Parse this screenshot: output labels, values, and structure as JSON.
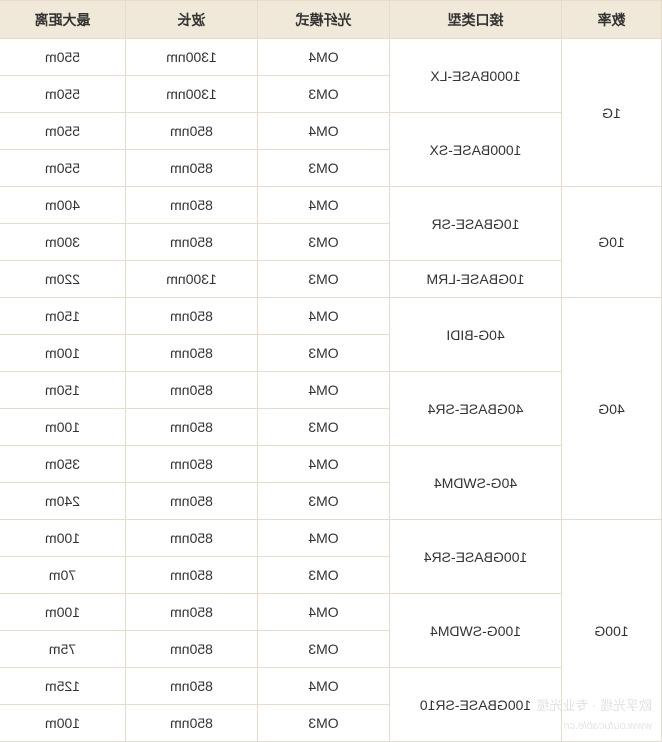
{
  "table": {
    "columns": [
      "数率",
      "接口类型",
      "光纤模式",
      "波长",
      "最大距离"
    ],
    "header_bg": "#f0e8d8",
    "cell_bg": "#ffffff",
    "border_color": "#e8dcc8",
    "text_color": "#333333",
    "font_size": 14,
    "groups": [
      {
        "rate": "1G",
        "interfaces": [
          {
            "name": "1000BASE-LX",
            "rows": [
              {
                "mode": "OM4",
                "wavelength": "1300nm",
                "distance": "550m"
              },
              {
                "mode": "OM3",
                "wavelength": "1300nm",
                "distance": "550m"
              }
            ]
          },
          {
            "name": "1000BASE-SX",
            "rows": [
              {
                "mode": "OM4",
                "wavelength": "850nm",
                "distance": "550m"
              },
              {
                "mode": "OM3",
                "wavelength": "850nm",
                "distance": "550m"
              }
            ]
          }
        ]
      },
      {
        "rate": "10G",
        "interfaces": [
          {
            "name": "10GBASE-SR",
            "rows": [
              {
                "mode": "OM4",
                "wavelength": "850nm",
                "distance": "400m"
              },
              {
                "mode": "OM3",
                "wavelength": "850nm",
                "distance": "300m"
              }
            ]
          },
          {
            "name": "10GBASE-LRM",
            "rows": [
              {
                "mode": "OM3",
                "wavelength": "1300nm",
                "distance": "220m"
              }
            ]
          }
        ]
      },
      {
        "rate": "40G",
        "interfaces": [
          {
            "name": "40G-BIDI",
            "rows": [
              {
                "mode": "OM4",
                "wavelength": "850nm",
                "distance": "150m"
              },
              {
                "mode": "OM3",
                "wavelength": "850nm",
                "distance": "100m"
              }
            ]
          },
          {
            "name": "40GBASE-SR4",
            "rows": [
              {
                "mode": "OM4",
                "wavelength": "850nm",
                "distance": "150m"
              },
              {
                "mode": "OM3",
                "wavelength": "850nm",
                "distance": "100m"
              }
            ]
          },
          {
            "name": "40G-SWDM4",
            "rows": [
              {
                "mode": "OM4",
                "wavelength": "850nm",
                "distance": "350m"
              },
              {
                "mode": "OM3",
                "wavelength": "850nm",
                "distance": "240m"
              }
            ]
          }
        ]
      },
      {
        "rate": "100G",
        "interfaces": [
          {
            "name": "100GBASE-SR4",
            "rows": [
              {
                "mode": "OM4",
                "wavelength": "850nm",
                "distance": "100m"
              },
              {
                "mode": "OM3",
                "wavelength": "850nm",
                "distance": "70m"
              }
            ]
          },
          {
            "name": "100G-SWDM4",
            "rows": [
              {
                "mode": "OM4",
                "wavelength": "850nm",
                "distance": "100m"
              },
              {
                "mode": "OM3",
                "wavelength": "850nm",
                "distance": "75m"
              }
            ]
          },
          {
            "name": "100GBASE-SR10",
            "rows": [
              {
                "mode": "OM4",
                "wavelength": "850nm",
                "distance": "125m"
              },
              {
                "mode": "OM3",
                "wavelength": "850nm",
                "distance": "100m"
              }
            ]
          }
        ]
      }
    ]
  },
  "watermark": {
    "line1": "欧孚光缆 · 专业光缆",
    "line2": "www.oufucable.cn"
  }
}
